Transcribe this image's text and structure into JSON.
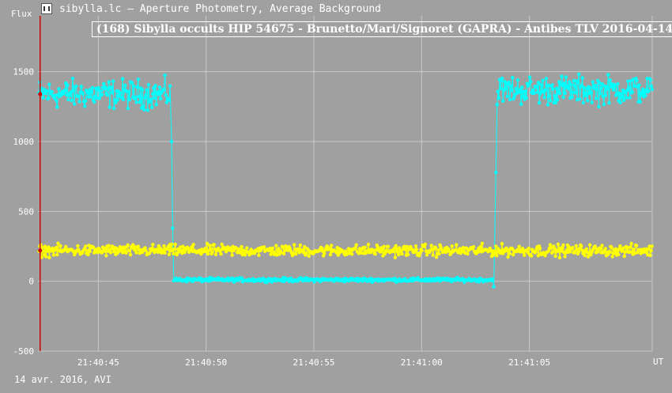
{
  "window": {
    "title": "sibylla.lc – Aperture Photometry, Average Background",
    "icon": "app-icon"
  },
  "footer": {
    "date_label": "14 avr. 2016, AVI"
  },
  "colors": {
    "background": "#a0a0a0",
    "grid": "#c8c8c8",
    "target": "#00ffff",
    "comparison": "#ffff00",
    "marker": "#cc0000",
    "text": "#ffffff"
  },
  "chart_data": {
    "type": "line",
    "title": "(168) Sibylla occults HIP 54675 - Brunetto/Mari/Signoret (GAPRA) - Antibes TLV 2016-04-14",
    "ylabel": "Flux",
    "xlabel": "UT",
    "ylim": [
      -500,
      1900
    ],
    "xlim": [
      "21:40:42.2",
      "21:41:10.7"
    ],
    "y_ticks": [
      -500,
      0,
      500,
      1000,
      1500
    ],
    "x_ticks": [
      "21:40:45",
      "21:40:50",
      "21:40:55",
      "21:41:00",
      "21:41:05"
    ],
    "grid": true,
    "cursor_time": "21:40:42.3",
    "series": [
      {
        "color": "#00ffff",
        "segments": [
          {
            "start": "21:40:42.25",
            "end": "21:40:48.35",
            "mean": 1340,
            "spread": 150
          },
          {
            "start": "21:40:48.50",
            "end": "21:41:03.30",
            "mean": 10,
            "spread": 20
          },
          {
            "start": "21:41:03.50",
            "end": "21:41:10.70",
            "mean": 1370,
            "spread": 150
          }
        ],
        "transitions": [
          {
            "time": "21:40:48.40",
            "value": 1000
          },
          {
            "time": "21:40:48.45",
            "value": 380
          },
          {
            "time": "21:41:03.35",
            "value": -40
          },
          {
            "time": "21:41:03.45",
            "value": 780
          }
        ]
      },
      {
        "color": "#ffff00",
        "segments": [
          {
            "start": "21:40:42.25",
            "end": "21:41:10.70",
            "mean": 220,
            "spread": 60
          }
        ],
        "transitions": []
      }
    ]
  }
}
